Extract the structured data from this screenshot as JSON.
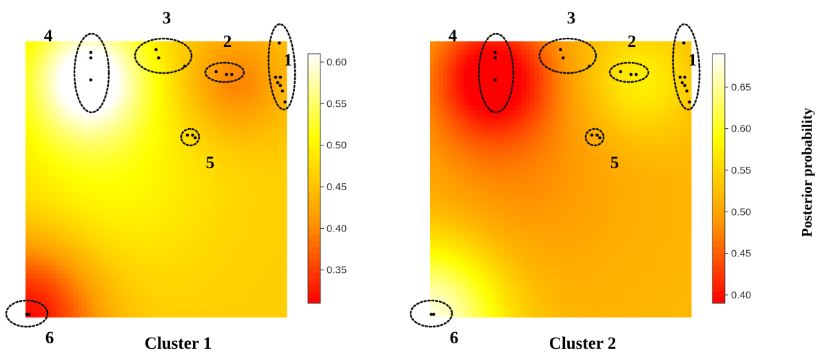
{
  "figure": {
    "ylabel": "Posterior probability",
    "colors": {
      "low": "#ff0000",
      "mid": "#ff9900",
      "high_mid": "#ffff00",
      "high": "#ffffff",
      "ring": "#111111"
    }
  },
  "chart_data": [
    {
      "type": "heatmap",
      "title": "Cluster 1",
      "colorbar": {
        "ticks": [
          "0.35",
          "0.40",
          "0.45",
          "0.50",
          "0.55",
          "0.60"
        ],
        "range": [
          0.31,
          0.61
        ]
      },
      "grid": {
        "nx": 60,
        "ny": 64,
        "base": 0.46,
        "sources": [
          {
            "x": 0.24,
            "y": 0.87,
            "amp": 0.16,
            "s": 0.15
          },
          {
            "x": 0.0,
            "y": 0.0,
            "amp": -0.15,
            "s": 0.2
          },
          {
            "x": 0.8,
            "y": 0.85,
            "amp": -0.07,
            "s": 0.14
          },
          {
            "x": 0.3,
            "y": 0.55,
            "amp": 0.05,
            "s": 0.3
          }
        ]
      },
      "clusters": [
        {
          "label": "1",
          "points": [
            [
              0.972,
              0.994
            ],
            [
              0.958,
              0.87
            ],
            [
              0.966,
              0.85
            ],
            [
              0.976,
              0.84
            ],
            [
              0.984,
              0.82
            ],
            [
              0.976,
              0.87
            ],
            [
              0.994,
              0.78
            ]
          ]
        },
        {
          "label": "2",
          "points": [
            [
              0.73,
              0.89
            ],
            [
              0.77,
              0.88
            ],
            [
              0.79,
              0.88
            ]
          ]
        },
        {
          "label": "3",
          "points": [
            [
              0.5,
              0.97
            ],
            [
              0.51,
              0.94
            ],
            [
              0.61,
              0.91
            ]
          ]
        },
        {
          "label": "4",
          "points": [
            [
              0.25,
              0.96
            ],
            [
              0.25,
              0.94
            ],
            [
              0.25,
              0.86
            ]
          ]
        },
        {
          "label": "5",
          "points": [
            [
              0.62,
              0.66
            ],
            [
              0.64,
              0.66
            ],
            [
              0.65,
              0.65
            ]
          ]
        },
        {
          "label": "6",
          "points": [
            [
              0.005,
              0.01
            ],
            [
              0.014,
              0.01
            ]
          ]
        }
      ]
    },
    {
      "type": "heatmap",
      "title": "Cluster 2",
      "colorbar": {
        "ticks": [
          "0.40",
          "0.45",
          "0.50",
          "0.55",
          "0.60",
          "0.65"
        ],
        "range": [
          0.39,
          0.69
        ]
      },
      "grid": {
        "nx": 60,
        "ny": 64,
        "base": 0.52,
        "sources": [
          {
            "x": 0.24,
            "y": 0.87,
            "amp": -0.14,
            "s": 0.15
          },
          {
            "x": 0.0,
            "y": 0.0,
            "amp": 0.16,
            "s": 0.2
          },
          {
            "x": 0.8,
            "y": 0.85,
            "amp": 0.06,
            "s": 0.14
          },
          {
            "x": 0.3,
            "y": 0.55,
            "amp": -0.04,
            "s": 0.3
          }
        ]
      },
      "clusters": [
        {
          "label": "1",
          "points": [
            [
              0.972,
              0.994
            ],
            [
              0.958,
              0.87
            ],
            [
              0.966,
              0.85
            ],
            [
              0.976,
              0.84
            ],
            [
              0.984,
              0.82
            ],
            [
              0.976,
              0.87
            ],
            [
              0.994,
              0.78
            ]
          ]
        },
        {
          "label": "2",
          "points": [
            [
              0.73,
              0.89
            ],
            [
              0.77,
              0.88
            ],
            [
              0.79,
              0.88
            ]
          ]
        },
        {
          "label": "3",
          "points": [
            [
              0.5,
              0.97
            ],
            [
              0.51,
              0.94
            ],
            [
              0.61,
              0.91
            ]
          ]
        },
        {
          "label": "4",
          "points": [
            [
              0.25,
              0.96
            ],
            [
              0.25,
              0.94
            ],
            [
              0.25,
              0.86
            ]
          ]
        },
        {
          "label": "5",
          "points": [
            [
              0.62,
              0.66
            ],
            [
              0.64,
              0.66
            ],
            [
              0.65,
              0.65
            ]
          ]
        },
        {
          "label": "6",
          "points": [
            [
              0.005,
              0.01
            ],
            [
              0.014,
              0.01
            ]
          ]
        }
      ]
    }
  ]
}
